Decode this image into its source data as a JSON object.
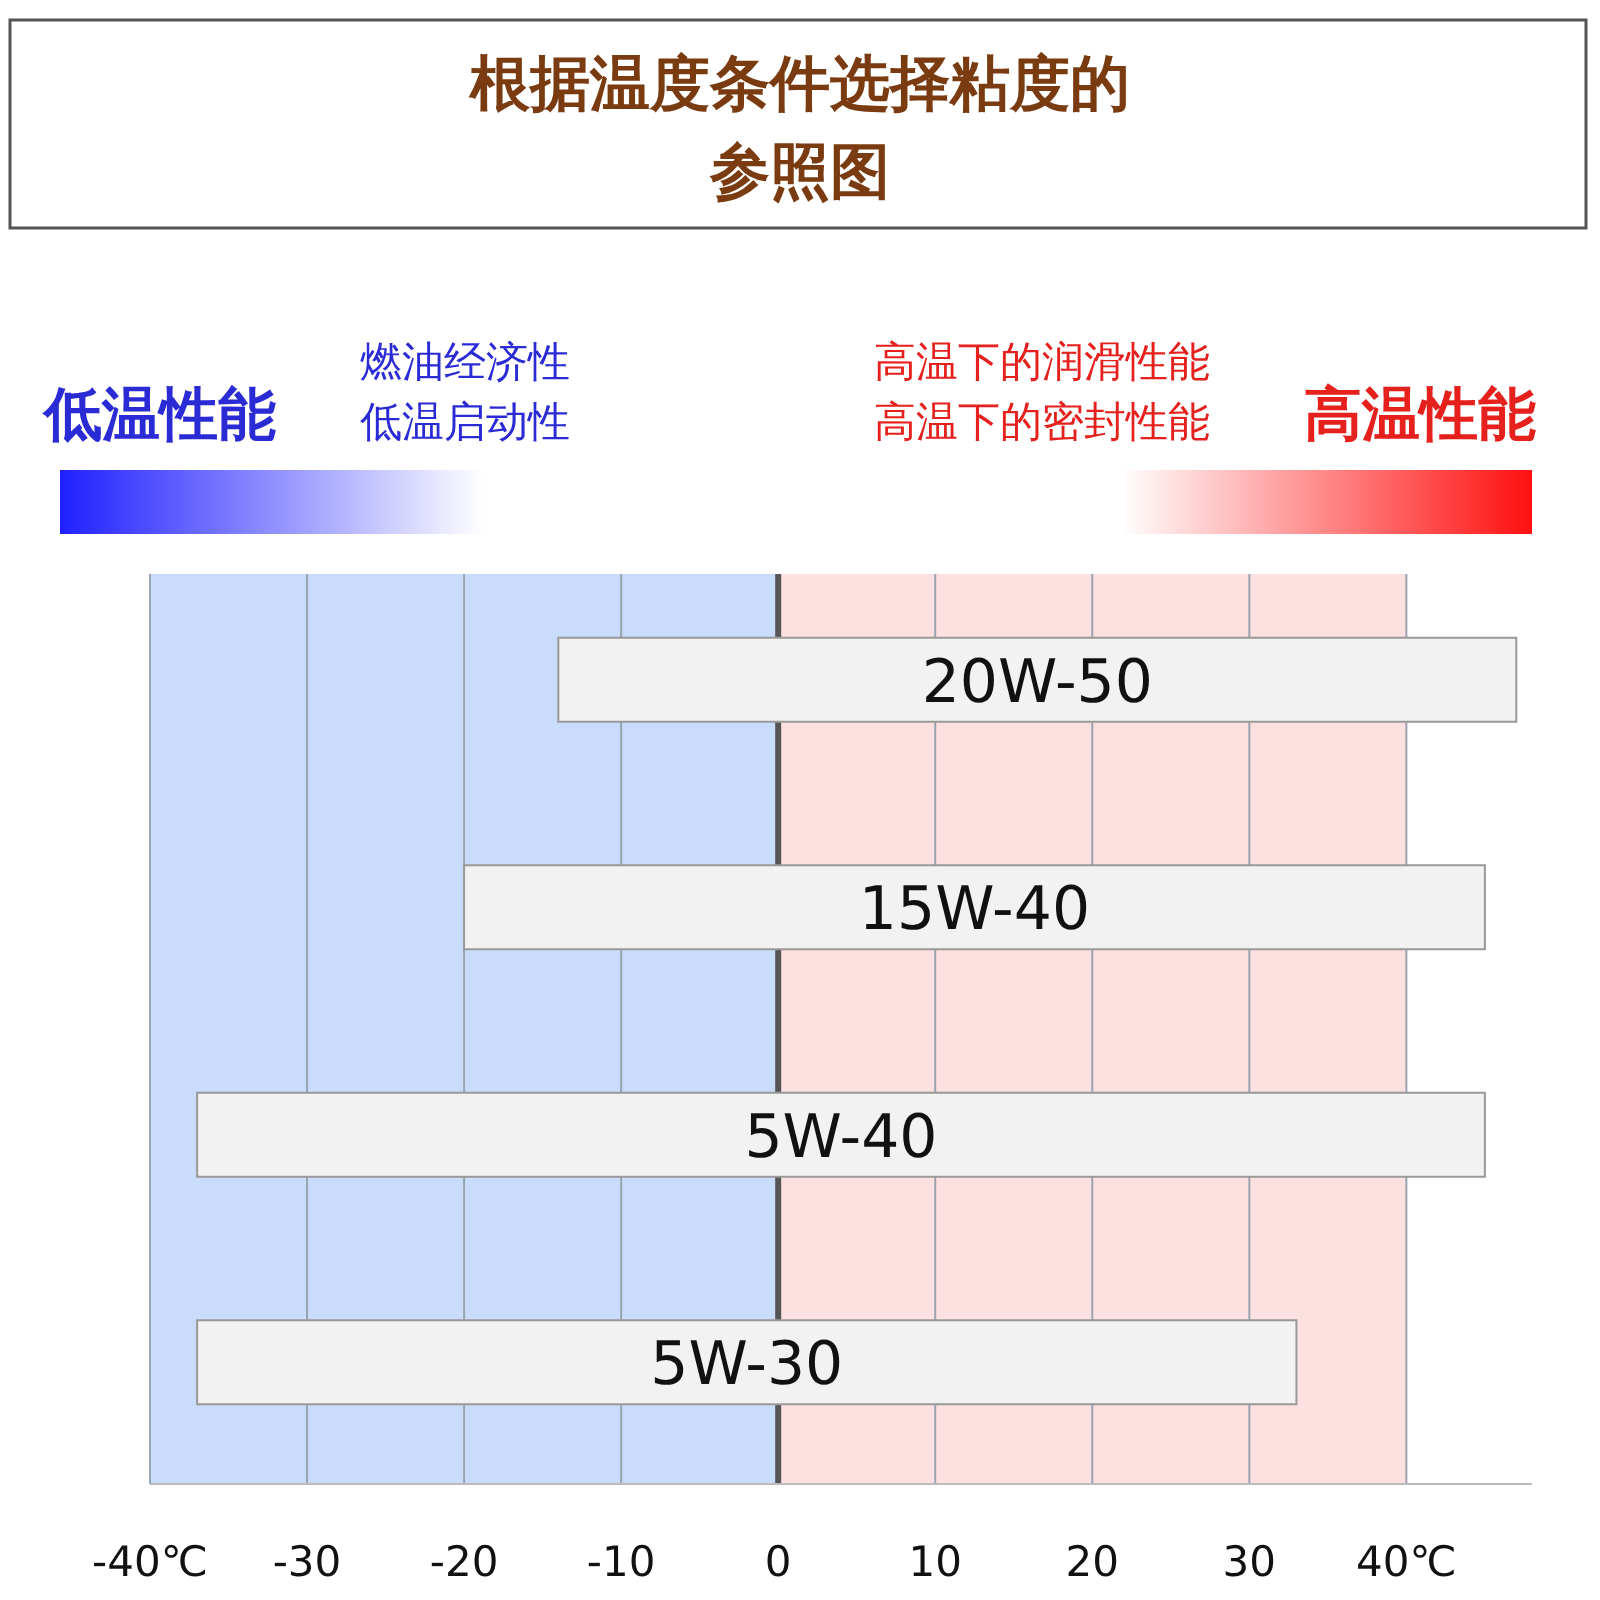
{
  "chart_data": {
    "type": "bar",
    "orientation": "horizontal",
    "title": "根据温度条件选择粘度的参照图",
    "annotations": [
      "低温性能",
      "燃油经济性",
      "低温启动性",
      "高温下的润滑性能",
      "高温下的密封性能",
      "高温性能"
    ],
    "categories": [
      "20W-50",
      "15W-40",
      "5W-40",
      "5W-30"
    ],
    "base": [
      -14,
      -20,
      -37,
      -37
    ],
    "values": [
      61,
      65,
      82,
      70
    ],
    "color": "#f2f2f2",
    "xlim": [
      -40,
      48
    ],
    "xticks": [
      {
        "value": -40,
        "label": "-40℃"
      },
      -30,
      -20,
      -10,
      0,
      10,
      20,
      30,
      {
        "value": 40,
        "label": "40℃"
      }
    ],
    "grid": "x",
    "bands": [
      {
        "axis": "x",
        "from": -40,
        "to": 0,
        "color": "#c9dcfb"
      },
      {
        "axis": "x",
        "from": 0,
        "to": 40,
        "color": "#fde1e1"
      }
    ],
    "ref_lines": [
      {
        "axis": "x",
        "value": 0,
        "color": "#555555"
      }
    ]
  }
}
